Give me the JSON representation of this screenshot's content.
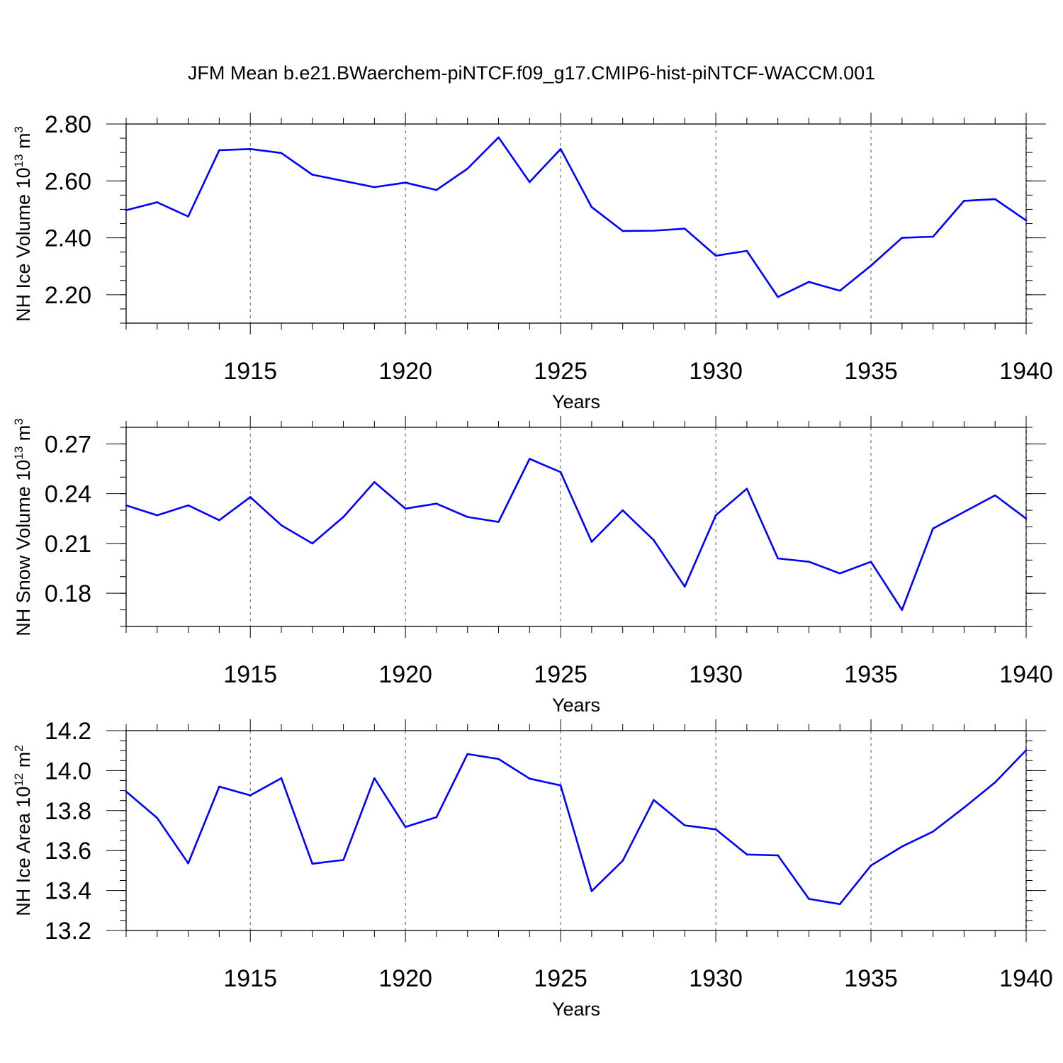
{
  "title": "JFM Mean b.e21.BWaerchem-piNTCF.f09_g17.CMIP6-hist-piNTCF-WACCM.001",
  "line_color": "#0000ff",
  "chart_data": [
    {
      "type": "line",
      "series_name": "NH Ice Volume",
      "ylabel_main": "NH Ice Volume 10",
      "ylabel_exp": "13",
      "ylabel_unit": "m",
      "ylabel_unit_exp": "3",
      "xlabel": "Years",
      "xlim": [
        1911,
        1940
      ],
      "ylim": [
        2.1,
        2.8
      ],
      "yticks": [
        "2.20",
        "2.40",
        "2.60",
        "2.80"
      ],
      "xticks": [
        "1915",
        "1920",
        "1925",
        "1930",
        "1935",
        "1940"
      ],
      "x": [
        1911,
        1912,
        1913,
        1914,
        1915,
        1916,
        1917,
        1918,
        1919,
        1920,
        1921,
        1922,
        1923,
        1924,
        1925,
        1926,
        1927,
        1928,
        1929,
        1930,
        1931,
        1932,
        1933,
        1934,
        1935,
        1936,
        1937,
        1938,
        1939,
        1940
      ],
      "values": [
        2.497,
        2.525,
        2.475,
        2.708,
        2.712,
        2.698,
        2.622,
        2.6,
        2.578,
        2.594,
        2.568,
        2.643,
        2.753,
        2.596,
        2.712,
        2.508,
        2.424,
        2.425,
        2.432,
        2.337,
        2.354,
        2.192,
        2.245,
        2.214,
        2.302,
        2.4,
        2.404,
        2.53,
        2.536,
        2.461
      ]
    },
    {
      "type": "line",
      "series_name": "NH Snow Volume",
      "ylabel_main": "NH Snow Volume 10",
      "ylabel_exp": "13",
      "ylabel_unit": "m",
      "ylabel_unit_exp": "3",
      "xlabel": "Years",
      "xlim": [
        1911,
        1940
      ],
      "ylim": [
        0.16,
        0.28
      ],
      "yticks": [
        "0.18",
        "0.21",
        "0.24",
        "0.27"
      ],
      "xticks": [
        "1915",
        "1920",
        "1925",
        "1930",
        "1935",
        "1940"
      ],
      "x": [
        1911,
        1912,
        1913,
        1914,
        1915,
        1916,
        1917,
        1918,
        1919,
        1920,
        1921,
        1922,
        1923,
        1924,
        1925,
        1926,
        1927,
        1928,
        1929,
        1930,
        1931,
        1932,
        1933,
        1934,
        1935,
        1936,
        1937,
        1938,
        1939,
        1940
      ],
      "values": [
        0.233,
        0.227,
        0.233,
        0.224,
        0.238,
        0.221,
        0.21,
        0.226,
        0.247,
        0.231,
        0.234,
        0.226,
        0.223,
        0.261,
        0.253,
        0.211,
        0.23,
        0.212,
        0.184,
        0.227,
        0.243,
        0.201,
        0.199,
        0.192,
        0.199,
        0.17,
        0.219,
        0.229,
        0.239,
        0.225
      ]
    },
    {
      "type": "line",
      "series_name": "NH Ice Area",
      "ylabel_main": "NH Ice Area 10",
      "ylabel_exp": "12",
      "ylabel_unit": "m",
      "ylabel_unit_exp": "2",
      "xlabel": "Years",
      "xlim": [
        1911,
        1940
      ],
      "ylim": [
        13.2,
        14.2
      ],
      "yticks": [
        "13.2",
        "13.4",
        "13.6",
        "13.8",
        "14.0",
        "14.2"
      ],
      "xticks": [
        "1915",
        "1920",
        "1925",
        "1930",
        "1935",
        "1940"
      ],
      "x": [
        1911,
        1912,
        1913,
        1914,
        1915,
        1916,
        1917,
        1918,
        1919,
        1920,
        1921,
        1922,
        1923,
        1924,
        1925,
        1926,
        1927,
        1928,
        1929,
        1930,
        1931,
        1932,
        1933,
        1934,
        1935,
        1936,
        1937,
        1938,
        1939,
        1940
      ],
      "values": [
        13.895,
        13.763,
        13.536,
        13.92,
        13.876,
        13.962,
        13.534,
        13.553,
        13.962,
        13.718,
        13.767,
        14.083,
        14.058,
        13.96,
        13.926,
        13.397,
        13.549,
        13.853,
        13.726,
        13.706,
        13.58,
        13.576,
        13.358,
        13.332,
        13.525,
        13.62,
        13.695,
        13.815,
        13.941,
        14.102
      ]
    }
  ]
}
